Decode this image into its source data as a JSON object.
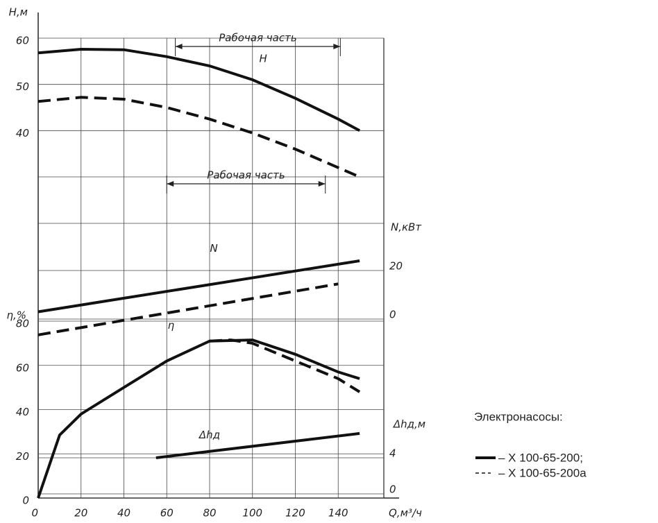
{
  "chart_data": {
    "type": "line",
    "xlim": [
      0,
      160
    ],
    "xticks": [
      0,
      20,
      40,
      60,
      80,
      100,
      120,
      140
    ],
    "xlabel": "Q,м³/ч",
    "axes": {
      "H": {
        "label": "H,м",
        "lim": [
          30,
          60
        ],
        "ticks": [
          40,
          50,
          60
        ]
      },
      "N": {
        "label": "N,кВт",
        "lim": [
          0,
          20
        ],
        "ticks": [
          0,
          20
        ]
      },
      "eta": {
        "label": "η,%",
        "lim": [
          0,
          80
        ],
        "ticks": [
          0,
          20,
          40,
          60,
          80
        ]
      },
      "dh": {
        "label": "Δhд,м",
        "lim": [
          0,
          4
        ],
        "ticks": [
          0,
          4
        ]
      }
    },
    "series": [
      {
        "axis": "H",
        "style": "solid",
        "x": [
          0,
          20,
          40,
          60,
          80,
          100,
          120,
          140,
          150
        ],
        "values": [
          56.8,
          57.6,
          57.5,
          56,
          54,
          51,
          47,
          42.5,
          40
        ]
      },
      {
        "axis": "H",
        "style": "dashed",
        "x": [
          0,
          20,
          40,
          60,
          80,
          100,
          120,
          140,
          150
        ],
        "values": [
          46.3,
          47.2,
          46.8,
          45,
          42.5,
          39.5,
          36,
          32,
          30
        ]
      },
      {
        "axis": "N",
        "style": "solid",
        "x": [
          0,
          150
        ],
        "values": [
          3,
          24
        ]
      },
      {
        "axis": "N",
        "style": "dashed",
        "x": [
          0,
          140
        ],
        "values": [
          -6.5,
          14.5
        ]
      },
      {
        "axis": "eta",
        "style": "solid",
        "x": [
          0,
          10,
          20,
          40,
          60,
          80,
          100,
          120,
          140,
          150
        ],
        "values": [
          0,
          28.5,
          38,
          50,
          62,
          71,
          71.5,
          65,
          57,
          54
        ]
      },
      {
        "axis": "eta",
        "style": "dashed",
        "x": [
          80,
          90,
          100,
          120,
          140,
          150
        ],
        "values": [
          71,
          71.5,
          70,
          62,
          54,
          48
        ]
      },
      {
        "axis": "dh",
        "style": "solid",
        "x": [
          55,
          150
        ],
        "values": [
          4,
          6.7
        ]
      }
    ],
    "ranges": [
      {
        "label": "Рабочая часть",
        "axis": "H",
        "at": 58.2,
        "x": [
          64,
          141
        ]
      },
      {
        "label": "Рабочая часть",
        "axis": "H",
        "at": 28.5,
        "x": [
          60,
          134
        ]
      }
    ],
    "curve_labels": [
      {
        "text": "H",
        "axis": "H",
        "at": 55.5,
        "x": 105
      },
      {
        "text": "N",
        "axis": "N",
        "at": 29,
        "x": 82
      },
      {
        "text": "η",
        "axis": "eta",
        "at": 78,
        "x": 62
      },
      {
        "text": "Δhд",
        "axis": "dh",
        "at": 6.5,
        "x": 80
      }
    ],
    "legend": {
      "title": "Электронасосы:",
      "entries": [
        {
          "label": "– Х 100-65-200;",
          "style": "solid"
        },
        {
          "label": "– Х 100-65-200а",
          "style": "dashed"
        }
      ]
    }
  }
}
